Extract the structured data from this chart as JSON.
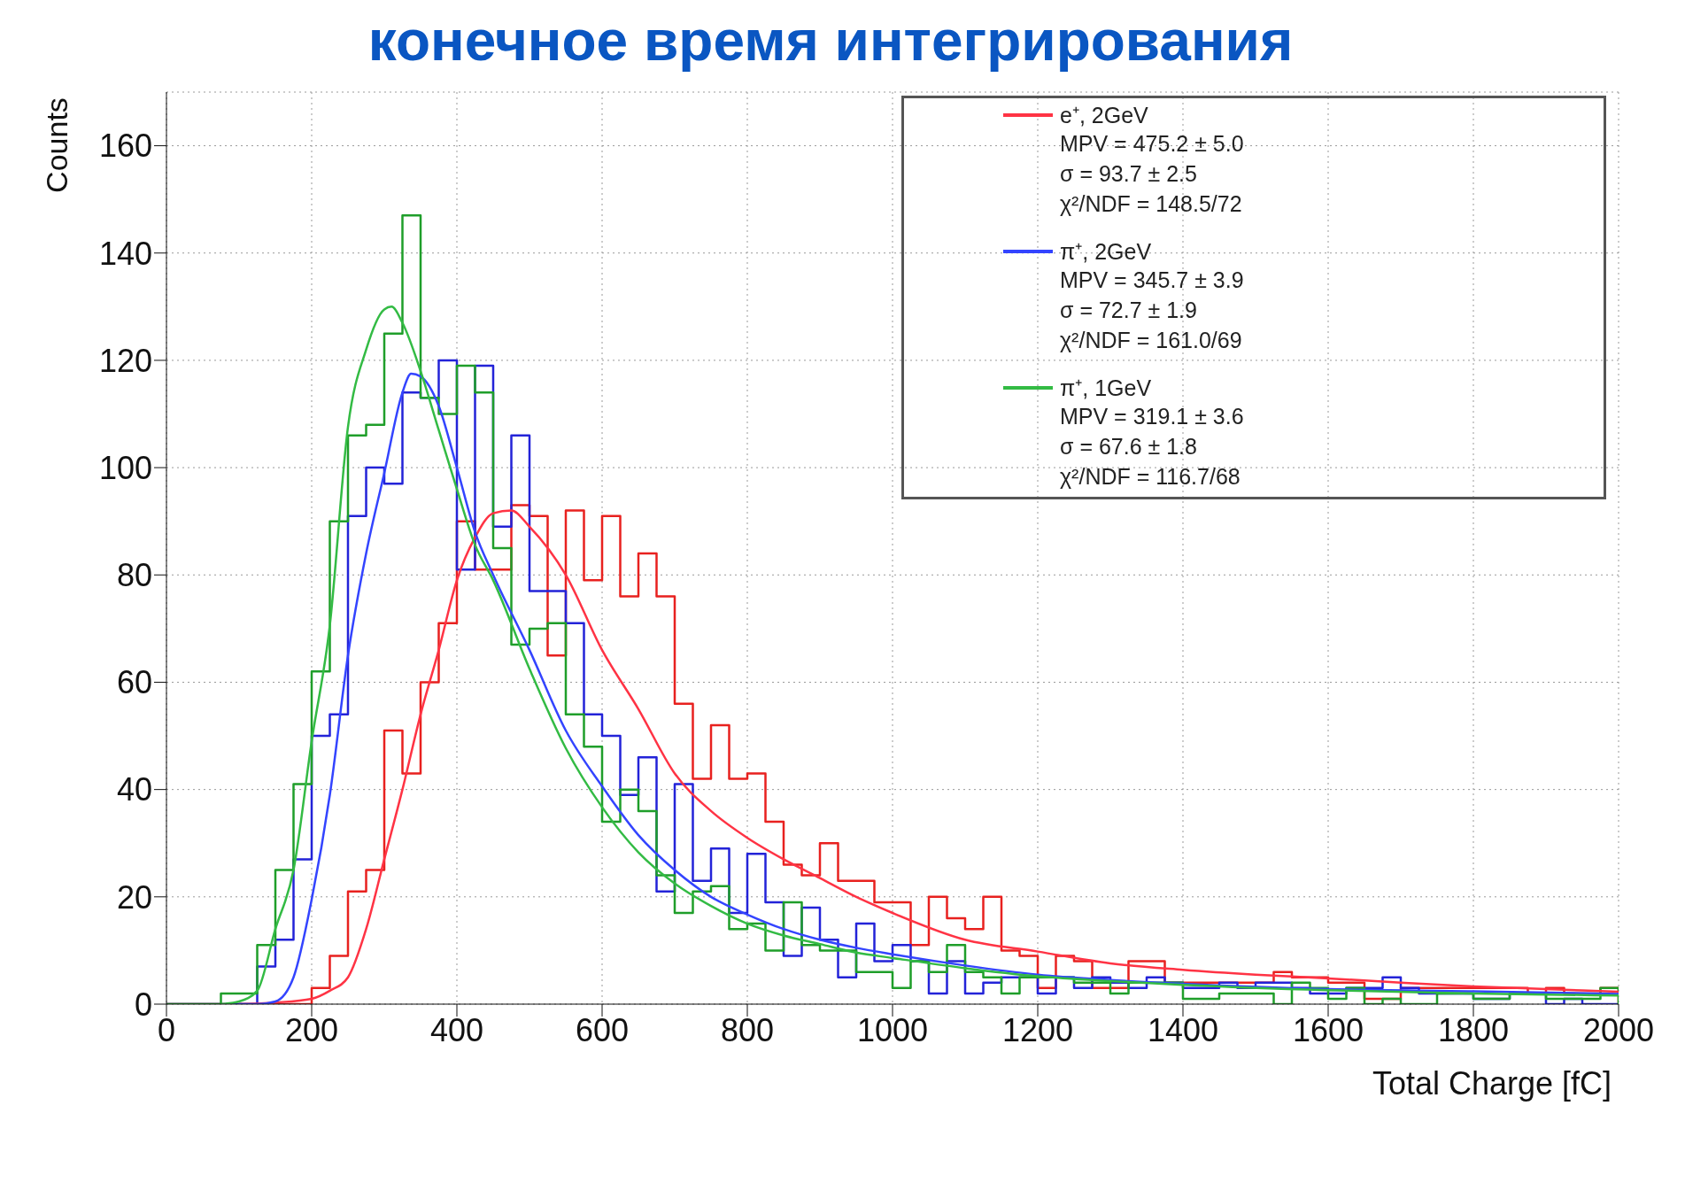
{
  "chart_data": {
    "type": "histogram",
    "title": "конечное время интегрирования",
    "xlabel": "Total Charge [fC]",
    "ylabel": "Counts",
    "bins": [
      0,
      25,
      50,
      75,
      100,
      125,
      150,
      175,
      200,
      225,
      250,
      275,
      300,
      325,
      350,
      375,
      400,
      425,
      450,
      475,
      500,
      525,
      550,
      575,
      600,
      625,
      650,
      675,
      700,
      725,
      750,
      775,
      800,
      825,
      850,
      875,
      900,
      925,
      950,
      975,
      1000,
      1025,
      1050,
      1075,
      1100,
      1125,
      1150,
      1175,
      1200,
      1225,
      1250,
      1275,
      1300,
      1325,
      1350,
      1375,
      1400,
      1425,
      1450,
      1475,
      1500,
      1525,
      1550,
      1575,
      1600,
      1625,
      1650,
      1675,
      1700,
      1725,
      1750,
      1775,
      1800,
      1825,
      1850,
      1875,
      1900,
      1925,
      1950,
      1975,
      2000
    ],
    "series": [
      {
        "color": "#e8211f",
        "values": [
          0,
          0,
          0,
          0,
          0,
          0,
          0,
          0,
          3,
          9,
          21,
          25,
          51,
          43,
          60,
          71,
          90,
          81,
          81,
          93,
          91,
          65,
          92,
          79,
          91,
          76,
          84,
          76,
          56,
          42,
          52,
          42,
          43,
          34,
          26,
          24,
          30,
          23,
          23,
          19,
          19,
          11,
          20,
          16,
          14,
          20,
          10,
          9,
          3,
          9,
          8,
          3,
          3,
          8,
          8,
          4,
          4,
          4,
          4,
          4,
          4,
          6,
          5,
          5,
          4,
          4,
          1,
          1,
          3,
          3,
          3,
          3,
          3,
          3,
          3,
          2,
          3,
          2,
          2,
          3
        ]
      },
      {
        "color": "#2323d8",
        "values": [
          0,
          0,
          0,
          0,
          0,
          7,
          12,
          27,
          50,
          54,
          91,
          100,
          97,
          114,
          113,
          120,
          81,
          119,
          89,
          106,
          77,
          77,
          71,
          54,
          50,
          39,
          46,
          21,
          41,
          23,
          29,
          17,
          28,
          19,
          9,
          18,
          12,
          5,
          15,
          8,
          11,
          8,
          2,
          8,
          2,
          4,
          5,
          5,
          2,
          5,
          3,
          5,
          4,
          3,
          5,
          4,
          3,
          3,
          4,
          3,
          4,
          4,
          3,
          2,
          2,
          3,
          3,
          5,
          3,
          2,
          2,
          2,
          1,
          1,
          2,
          2,
          0,
          1,
          0,
          0
        ]
      },
      {
        "color": "#1f9e2a",
        "values": [
          0,
          0,
          0,
          2,
          2,
          11,
          25,
          41,
          62,
          90,
          106,
          108,
          125,
          147,
          113,
          110,
          119,
          114,
          85,
          67,
          70,
          71,
          54,
          48,
          34,
          40,
          36,
          24,
          17,
          21,
          22,
          14,
          15,
          10,
          19,
          11,
          10,
          10,
          6,
          6,
          3,
          8,
          6,
          11,
          6,
          5,
          2,
          5,
          5,
          5,
          4,
          4,
          2,
          4,
          4,
          4,
          1,
          1,
          2,
          2,
          2,
          0,
          4,
          3,
          1,
          3,
          0,
          1,
          0,
          0,
          2,
          2,
          1,
          1,
          2,
          2,
          1,
          1,
          1,
          3
        ]
      },
      {
        "type": "line",
        "name": "e⁺, 2GeV",
        "color": "#ff3344",
        "x": [
          100,
          150,
          200,
          225,
          250,
          275,
          300,
          325,
          350,
          375,
          400,
          425,
          450,
          475,
          500,
          550,
          600,
          650,
          700,
          750,
          800,
          850,
          900,
          950,
          1000,
          1100,
          1200,
          1300,
          1400,
          1500,
          1600,
          1700,
          1800,
          1900,
          2000
        ],
        "values": [
          0,
          0.3,
          1,
          2.5,
          5,
          14,
          27,
          40,
          54,
          66,
          79,
          87,
          91.5,
          92,
          89,
          80,
          66,
          55,
          43,
          36,
          31,
          27,
          23.5,
          20,
          17,
          12,
          9.8,
          7.6,
          6.4,
          5.5,
          4.8,
          4,
          3.3,
          2.8,
          2.3
        ]
      },
      {
        "type": "line",
        "name": "π⁺, 2GeV",
        "color": "#3344ff",
        "x": [
          100,
          125,
          150,
          175,
          200,
          225,
          250,
          275,
          300,
          325,
          337,
          350,
          375,
          400,
          425,
          450,
          500,
          550,
          600,
          650,
          700,
          750,
          800,
          850,
          900,
          950,
          1000,
          1100,
          1200,
          1300,
          1400,
          1600,
          1800,
          2000
        ],
        "values": [
          0,
          0,
          0.5,
          5,
          19.5,
          39,
          65,
          84,
          99,
          114,
          117.5,
          117,
          111.5,
          100,
          88,
          80,
          66,
          51,
          40.6,
          31.5,
          25,
          20,
          16.7,
          14,
          12,
          10.5,
          9.3,
          7.2,
          5.5,
          4.5,
          3.8,
          2.8,
          2.4,
          1.9
        ]
      },
      {
        "type": "line",
        "name": "π⁺, 1GeV",
        "color": "#33bb44",
        "x": [
          75,
          100,
          125,
          150,
          175,
          200,
          225,
          250,
          275,
          300,
          310,
          325,
          350,
          375,
          400,
          425,
          450,
          500,
          550,
          600,
          650,
          700,
          750,
          800,
          850,
          900,
          950,
          1000,
          1100,
          1200,
          1300,
          1400,
          1600,
          1800,
          2000
        ],
        "values": [
          0,
          0.5,
          2.5,
          14,
          25,
          49,
          70.6,
          107.6,
          122,
          129.5,
          130,
          127,
          118,
          107,
          96,
          85.6,
          79,
          62.5,
          47.7,
          36.7,
          28.3,
          22.5,
          18.3,
          15,
          12.8,
          11.2,
          9.6,
          8.6,
          6.7,
          5.2,
          4.3,
          3.6,
          2.6,
          2,
          1.6
        ]
      }
    ],
    "annotations": [
      "MPV = 475.2 ± 5.0",
      "σ = 93.7 ± 2.5",
      "χ²/NDF = 148.5/72",
      "MPV = 345.7 ± 3.9",
      "σ = 72.7 ± 1.9",
      "χ²/NDF = 161.0/69",
      "MPV = 319.1 ± 3.6",
      "σ = 67.6 ± 1.8",
      "χ²/NDF = 116.7/68"
    ],
    "xlim": [
      0,
      2000
    ],
    "xticks": [
      0,
      200,
      400,
      600,
      800,
      1000,
      1200,
      1400,
      1600,
      1800,
      2000
    ],
    "ylim": [
      0,
      170
    ],
    "yticks": [
      0,
      20,
      40,
      60,
      80,
      100,
      120,
      140,
      160
    ],
    "grid": true,
    "legend": "top right"
  }
}
